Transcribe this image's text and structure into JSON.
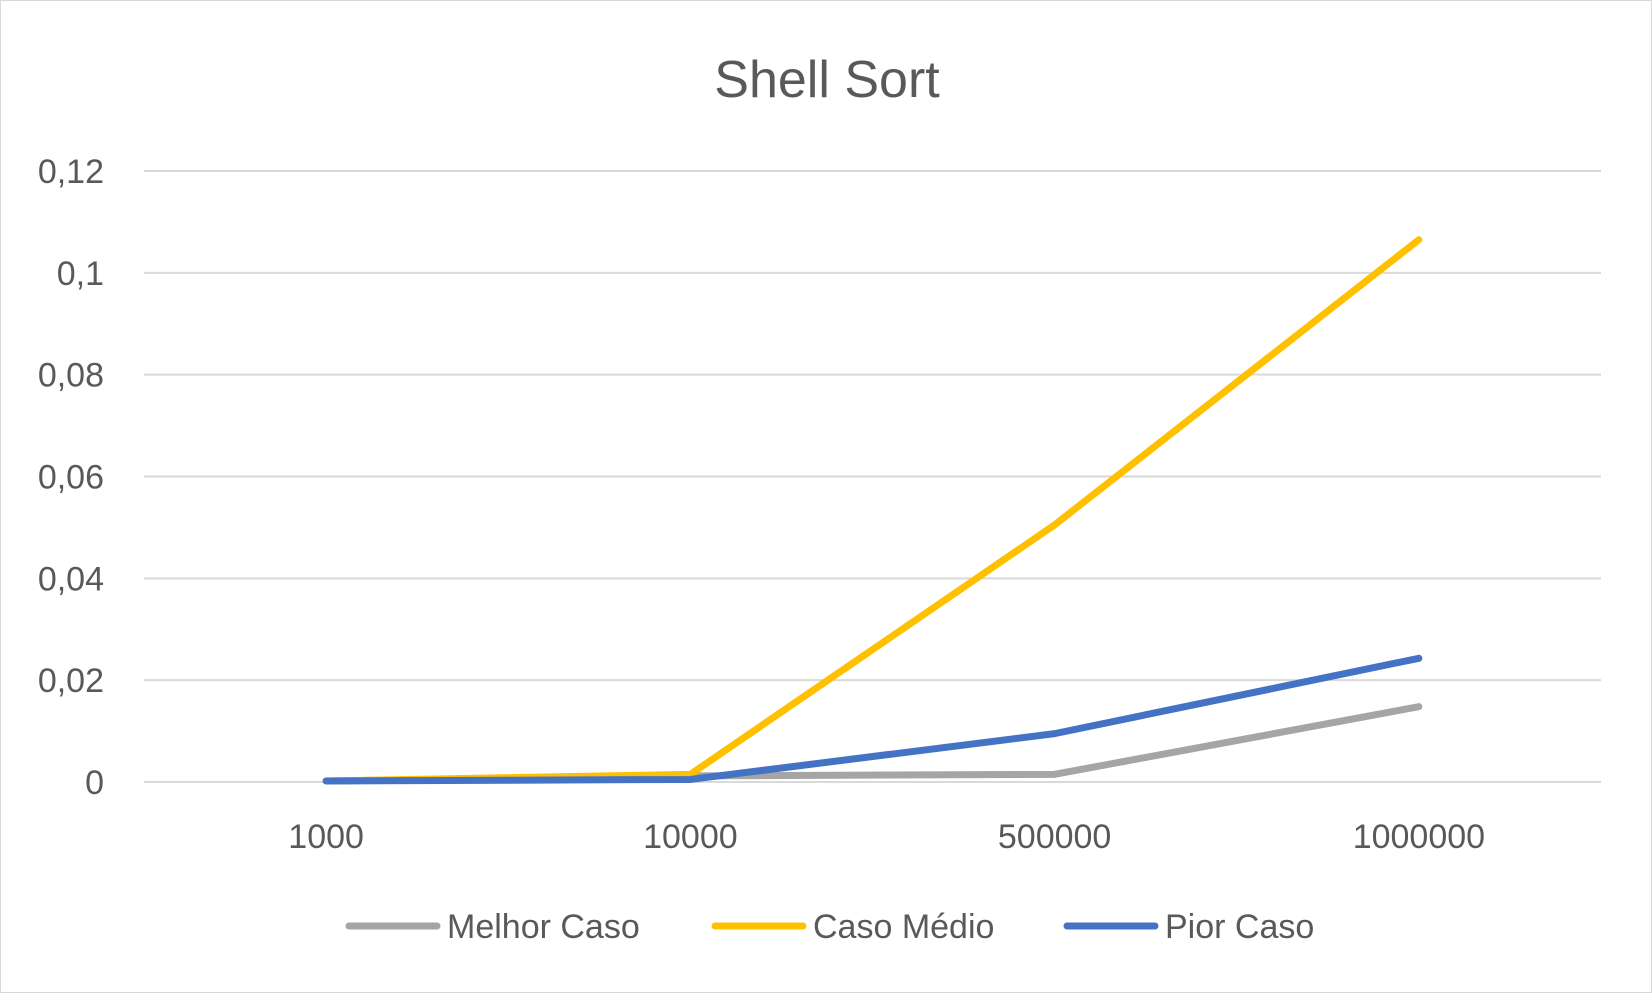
{
  "chart_data": {
    "type": "line",
    "title": "Shell Sort",
    "xlabel": "",
    "ylabel": "",
    "categories": [
      "1000",
      "10000",
      "500000",
      "1000000"
    ],
    "ylim": [
      0,
      0.12
    ],
    "y_ticks": [
      {
        "value": 0,
        "label": "0"
      },
      {
        "value": 0.02,
        "label": "0,02"
      },
      {
        "value": 0.04,
        "label": "0,04"
      },
      {
        "value": 0.06,
        "label": "0,06"
      },
      {
        "value": 0.08,
        "label": "0,08"
      },
      {
        "value": 0.1,
        "label": "0,1"
      },
      {
        "value": 0.12,
        "label": "0,12"
      }
    ],
    "grid": true,
    "legend_position": "bottom",
    "series": [
      {
        "name": "Melhor Caso",
        "color": "#a5a5a5",
        "values": [
          0.0002,
          0.0012,
          0.0015,
          0.0148
        ]
      },
      {
        "name": "Caso Médio",
        "color": "#ffc000",
        "values": [
          0.0002,
          0.0015,
          0.0505,
          0.1065
        ]
      },
      {
        "name": "Pior Caso",
        "color": "#4472c4",
        "values": [
          0.0002,
          0.0005,
          0.0095,
          0.0243
        ]
      }
    ]
  }
}
